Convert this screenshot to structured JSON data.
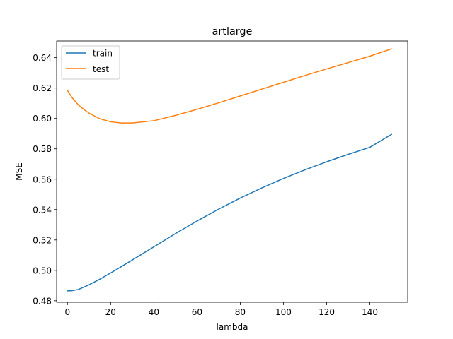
{
  "chart_data": {
    "type": "line",
    "title": "artlarge",
    "xlabel": "lambda",
    "ylabel": "MSE",
    "xlim": [
      -5,
      157.5
    ],
    "ylim": [
      0.479,
      0.651
    ],
    "xticks": [
      0,
      20,
      40,
      60,
      80,
      100,
      120,
      140
    ],
    "yticks": [
      0.48,
      0.5,
      0.52,
      0.54,
      0.56,
      0.58,
      0.6,
      0.62,
      0.64
    ],
    "grid": false,
    "legend_position": "top-left",
    "series": [
      {
        "name": "train",
        "color": "#1f77b4",
        "x": [
          0,
          2,
          5,
          10,
          15,
          20,
          25,
          30,
          40,
          50,
          60,
          70,
          80,
          90,
          100,
          110,
          120,
          130,
          140,
          150
        ],
        "y": [
          0.4865,
          0.4866,
          0.4874,
          0.4905,
          0.4942,
          0.4983,
          0.5025,
          0.5068,
          0.5155,
          0.5242,
          0.5325,
          0.5403,
          0.5476,
          0.5543,
          0.5605,
          0.5662,
          0.5715,
          0.5764,
          0.581,
          0.5895
        ]
      },
      {
        "name": "test",
        "color": "#ff7f0e",
        "x": [
          0,
          2,
          5,
          8,
          10,
          15,
          20,
          25,
          30,
          40,
          50,
          60,
          70,
          80,
          90,
          100,
          110,
          120,
          130,
          140,
          150
        ],
        "y": [
          0.6185,
          0.614,
          0.609,
          0.6055,
          0.6035,
          0.5998,
          0.5978,
          0.597,
          0.597,
          0.5985,
          0.602,
          0.606,
          0.6103,
          0.6148,
          0.6193,
          0.6238,
          0.6283,
          0.6326,
          0.6368,
          0.641,
          0.6458
        ]
      }
    ]
  }
}
